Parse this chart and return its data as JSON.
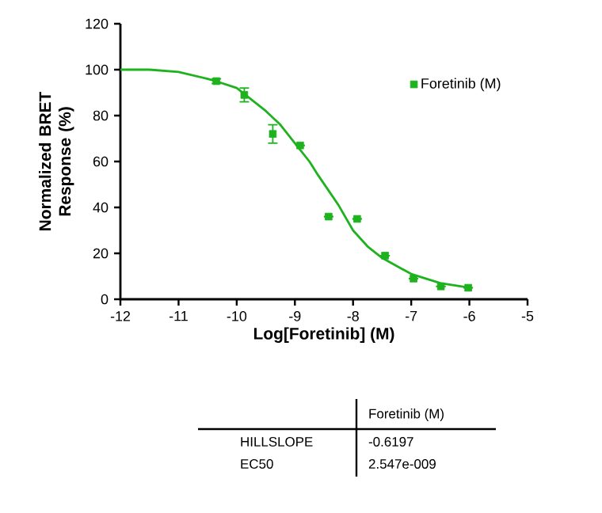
{
  "chart_data": {
    "type": "scatter",
    "xlabel": "Log[Foretinib] (M)",
    "ylabel": "Normalized BRET Response (%)",
    "xlim": [
      -12,
      -5
    ],
    "xticks": [
      -12,
      -11,
      -10,
      -9,
      -8,
      -7,
      -6,
      -5
    ],
    "ylim": [
      0,
      120
    ],
    "yticks": [
      0,
      20,
      40,
      60,
      80,
      100,
      120
    ],
    "legend": "right",
    "grid": false,
    "marker": "square",
    "series": [
      {
        "name": "Foretinib (M)",
        "color": "#1fb21f",
        "x": [
          -10.35,
          -9.87,
          -9.38,
          -8.91,
          -8.42,
          -7.93,
          -7.45,
          -6.96,
          -6.49,
          -6.02
        ],
        "values": [
          95,
          89,
          72,
          67,
          36,
          35,
          19,
          9,
          5.6,
          5
        ],
        "errors": [
          1,
          3,
          4,
          null,
          null,
          null,
          null,
          null,
          null,
          null
        ]
      },
      {
        "type": "line",
        "marker": "none",
        "color": "#1fb21f",
        "x": [
          -12,
          -11.5,
          -11,
          -10.5,
          -10.36,
          -10,
          -9.5,
          -9.25,
          -9,
          -8.75,
          -8.6,
          -8.25,
          -8,
          -7.75,
          -7.5,
          -7,
          -6.5,
          -6
        ],
        "values": [
          100,
          100,
          99,
          96,
          95,
          92,
          82,
          76,
          68,
          60,
          54,
          41,
          30,
          23,
          18,
          11,
          7,
          5
        ]
      }
    ],
    "annotations": [
      "Foretinib (M)",
      "HILLSLOPE",
      "-0.6197",
      "EC50",
      "2.547e-009"
    ]
  }
}
